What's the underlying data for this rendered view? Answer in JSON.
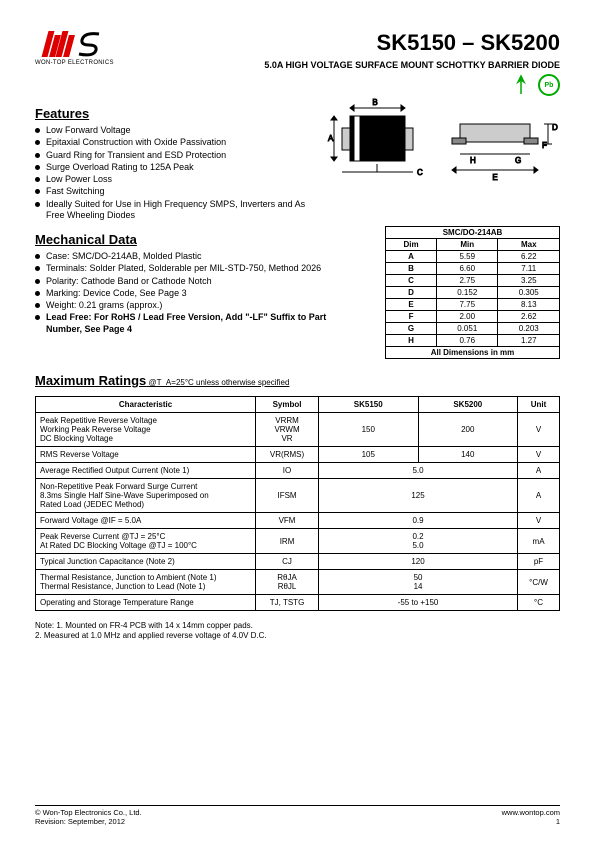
{
  "header": {
    "logo_sub": "WON-TOP ELECTRONICS",
    "title": "SK5150 – SK5200",
    "subtitle": "5.0A HIGH VOLTAGE SURFACE MOUNT SCHOTTKY BARRIER DIODE",
    "rohs_label": "RoHS",
    "pb_label": "Pb"
  },
  "features": {
    "heading": "Features",
    "items": [
      "Low Forward Voltage",
      "Epitaxial Construction with Oxide Passivation",
      "Guard Ring for Transient and ESD Protection",
      "Surge Overload Rating to 125A Peak",
      "Low Power Loss",
      "Fast Switching",
      "Ideally Suited for Use in High Frequency SMPS, Inverters and As Free Wheeling Diodes"
    ]
  },
  "mechanical": {
    "heading": "Mechanical Data",
    "items": [
      "Case: SMC/DO-214AB, Molded Plastic",
      "Terminals: Solder Plated, Solderable per MIL-STD-750, Method 2026",
      "Polarity: Cathode Band or Cathode Notch",
      "Marking: Device Code, See Page 3",
      "Weight: 0.21 grams (approx.)",
      "Lead Free: For RoHS / Lead Free Version, Add \"-LF\" Suffix to Part Number, See Page 4"
    ],
    "bold_last": true
  },
  "dim_table": {
    "header": "SMC/DO-214AB",
    "cols": [
      "Dim",
      "Min",
      "Max"
    ],
    "rows": [
      [
        "A",
        "5.59",
        "6.22"
      ],
      [
        "B",
        "6.60",
        "7.11"
      ],
      [
        "C",
        "2.75",
        "3.25"
      ],
      [
        "D",
        "0.152",
        "0.305"
      ],
      [
        "E",
        "7.75",
        "8.13"
      ],
      [
        "F",
        "2.00",
        "2.62"
      ],
      [
        "G",
        "0.051",
        "0.203"
      ],
      [
        "H",
        "0.76",
        "1.27"
      ]
    ],
    "footer": "All Dimensions in mm"
  },
  "max": {
    "heading": "Maximum Ratings",
    "sub": " @T_A=25°C unless otherwise specified",
    "cols": [
      "Characteristic",
      "Symbol",
      "SK5150",
      "SK5200",
      "Unit"
    ],
    "rows": [
      {
        "char": "Peak Repetitive Reverse Voltage\nWorking Peak Reverse Voltage\nDC Blocking Voltage",
        "sym": "VRRM\nVRWM\nVR",
        "v1": "150",
        "v2": "200",
        "unit": "V"
      },
      {
        "char": "RMS Reverse Voltage",
        "sym": "VR(RMS)",
        "v1": "105",
        "v2": "140",
        "unit": "V"
      },
      {
        "char": "Average Rectified Output Current (Note 1)",
        "sym": "IO",
        "merged": "5.0",
        "unit": "A"
      },
      {
        "char": "Non-Repetitive Peak Forward Surge Current\n8.3ms Single Half Sine-Wave Superimposed on\nRated Load (JEDEC Method)",
        "sym": "IFSM",
        "merged": "125",
        "unit": "A"
      },
      {
        "char": "Forward Voltage                                    @IF = 5.0A",
        "sym": "VFM",
        "merged": "0.9",
        "unit": "V"
      },
      {
        "char": "Peak Reverse Current                    @TJ = 25°C\nAt Rated DC Blocking Voltage        @TJ = 100°C",
        "sym": "IRM",
        "merged": "0.2\n5.0",
        "unit": "mA"
      },
      {
        "char": "Typical Junction Capacitance (Note 2)",
        "sym": "CJ",
        "merged": "120",
        "unit": "pF"
      },
      {
        "char": "Thermal Resistance, Junction to Ambient (Note 1)\nThermal Resistance, Junction to Lead (Note 1)",
        "sym": "RθJA\nRθJL",
        "merged": "50\n14",
        "unit": "°C/W"
      },
      {
        "char": "Operating and Storage Temperature Range",
        "sym": "TJ, TSTG",
        "merged": "-55 to +150",
        "unit": "°C"
      }
    ]
  },
  "notes": {
    "l1": "Note:  1. Mounted on FR-4 PCB with 14 x 14mm copper pads.",
    "l2": "           2. Measured at 1.0 MHz and applied reverse voltage of 4.0V D.C."
  },
  "footer": {
    "left1": "© Won-Top Electronics Co., Ltd.",
    "left2": "Revision: September, 2012",
    "right1": "www.wontop.com",
    "right2": "1"
  },
  "colors": {
    "brand_red": "#d00000",
    "green": "#00a000"
  }
}
